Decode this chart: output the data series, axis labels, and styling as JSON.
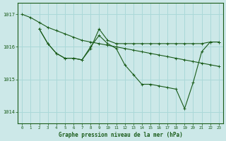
{
  "title": "Graphe pression niveau de la mer (hPa)",
  "bg_color": "#cce8e8",
  "grid_color": "#aad8d8",
  "line_color": "#1a5c1a",
  "xlim": [
    -0.5,
    23.5
  ],
  "ylim": [
    1013.65,
    1017.35
  ],
  "x_ticks": [
    0,
    1,
    2,
    3,
    4,
    5,
    6,
    7,
    8,
    9,
    10,
    11,
    12,
    13,
    14,
    15,
    16,
    17,
    18,
    19,
    20,
    21,
    22,
    23
  ],
  "y_ticks": [
    1014,
    1015,
    1016,
    1017
  ],
  "series": [
    {
      "x": [
        0,
        1,
        2,
        3,
        4,
        5,
        6,
        7,
        8,
        9,
        10,
        11,
        12,
        13,
        14,
        15,
        16,
        17,
        18,
        19,
        20,
        21,
        22,
        23
      ],
      "y": [
        1017.0,
        1016.9,
        1016.75,
        1016.6,
        1016.5,
        1016.4,
        1016.3,
        1016.2,
        1016.15,
        1016.1,
        1016.05,
        1016.0,
        1015.95,
        1015.9,
        1015.85,
        1015.8,
        1015.75,
        1015.7,
        1015.65,
        1015.6,
        1015.55,
        1015.5,
        1015.45,
        1015.4
      ]
    },
    {
      "x": [
        2,
        3,
        4,
        5,
        6,
        7,
        8,
        9,
        10,
        11,
        12,
        13,
        14,
        15,
        16,
        17,
        18,
        19,
        20,
        21,
        22,
        23
      ],
      "y": [
        1016.55,
        1016.1,
        1015.8,
        1015.65,
        1015.65,
        1015.6,
        1015.95,
        1016.55,
        1016.2,
        1016.1,
        1016.1,
        1016.1,
        1016.1,
        1016.1,
        1016.1,
        1016.1,
        1016.1,
        1016.1,
        1016.1,
        1016.1,
        1016.15,
        1016.15
      ]
    },
    {
      "x": [
        2,
        3,
        4,
        5,
        6,
        7,
        8,
        9,
        10,
        11,
        12,
        13,
        14,
        15,
        16,
        17,
        18,
        19,
        20,
        21,
        22,
        23
      ],
      "y": [
        1016.55,
        1016.1,
        1015.8,
        1015.65,
        1015.65,
        1015.6,
        1016.0,
        1016.35,
        1016.1,
        1015.95,
        1015.45,
        1015.15,
        1014.85,
        1014.85,
        1014.8,
        1014.75,
        1014.7,
        1014.1,
        1014.9,
        1015.85,
        1016.15,
        1016.15
      ]
    }
  ]
}
